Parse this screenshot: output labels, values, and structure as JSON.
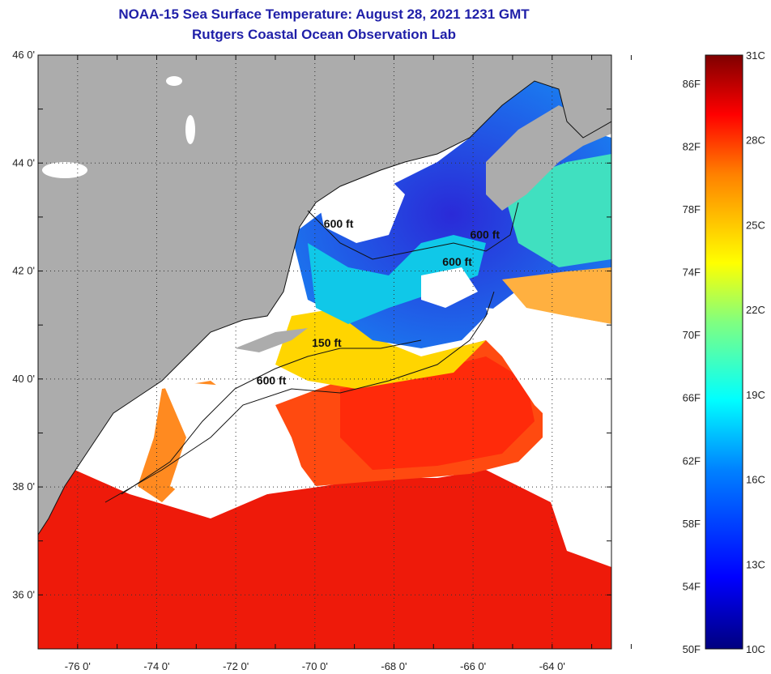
{
  "header": {
    "title": "NOAA-15 Sea Surface Temperature:  August 28, 2021 1231 GMT",
    "subtitle": "Rutgers Coastal Ocean Observation Lab"
  },
  "map": {
    "lat_labels": [
      "46 0'",
      "44 0'",
      "42 0'",
      "40 0'",
      "38 0'",
      "36 0'"
    ],
    "lon_labels": [
      "-76 0'",
      "-74 0'",
      "-72 0'",
      "-70 0'",
      "-68 0'",
      "-66 0'",
      "-64 0'"
    ],
    "lat_range": [
      35,
      46
    ],
    "lon_range": [
      -77,
      -62.5
    ],
    "contours": [
      {
        "label": "600 ft",
        "lon": -69.4,
        "lat": 42.8
      },
      {
        "label": "600 ft",
        "lon": -65.7,
        "lat": 42.6
      },
      {
        "label": "600 ft",
        "lon": -66.4,
        "lat": 42.1
      },
      {
        "label": "150 ft",
        "lon": -69.7,
        "lat": 40.6
      },
      {
        "label": "600 ft",
        "lon": -71.1,
        "lat": 39.9
      }
    ],
    "colors": {
      "land": "#acacac",
      "cloud": "#ffffff",
      "coast": "#111111"
    }
  },
  "colorbar": {
    "fahrenheit_labels": [
      "86F",
      "82F",
      "78F",
      "74F",
      "70F",
      "66F",
      "62F",
      "58F",
      "54F",
      "50F"
    ],
    "celsius_labels": [
      "31C",
      "28C",
      "25C",
      "22C",
      "19C",
      "16C",
      "13C",
      "10C"
    ],
    "f_values": [
      86,
      82,
      78,
      74,
      70,
      66,
      62,
      58,
      54,
      50
    ],
    "c_values": [
      31,
      28,
      25,
      22,
      19,
      16,
      13,
      10
    ],
    "range_c": [
      10,
      31
    ]
  }
}
